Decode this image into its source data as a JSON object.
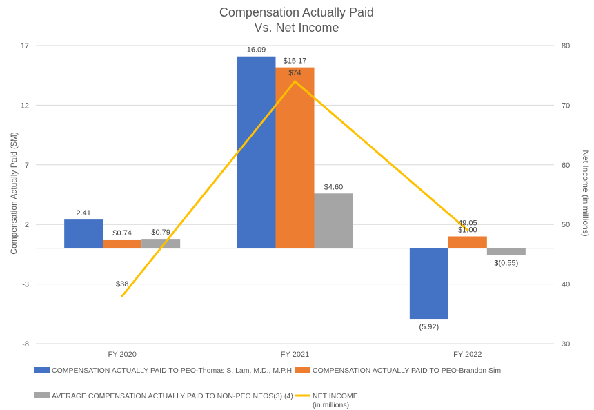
{
  "chart_data": {
    "type": "bar",
    "title": [
      "Compensation Actually Paid",
      "Vs. Net Income"
    ],
    "categories": [
      "FY 2020",
      "FY 2021",
      "FY 2022"
    ],
    "ylabel": "Compensation Actually Paid ($M)",
    "y2label": "Net Income (in millions)",
    "ylim": [
      -8,
      17
    ],
    "yticks": [
      -8,
      -3,
      2,
      7,
      12,
      17
    ],
    "y2lim": [
      30,
      80
    ],
    "y2ticks": [
      30,
      40,
      50,
      60,
      70,
      80
    ],
    "grid": true,
    "series": [
      {
        "name": "COMPENSATION ACTUALLY PAID TO PEO-Thomas S. Lam, M.D., M.P.H",
        "type": "bar",
        "color": "#4472C4",
        "values": [
          2.41,
          16.09,
          -5.92
        ],
        "labels": [
          "2.41",
          "16.09",
          "(5.92)"
        ]
      },
      {
        "name": "COMPENSATION ACTUALLY PAID TO PEO-Brandon Sim",
        "type": "bar",
        "color": "#ED7D31",
        "values": [
          0.74,
          15.17,
          1.0
        ],
        "labels": [
          "$0.74",
          "$15.17",
          "$1.00"
        ]
      },
      {
        "name": "AVERAGE COMPENSATION ACTUALLY PAID TO NON-PEO NEOS(3) (4)",
        "type": "bar",
        "color": "#A5A5A5",
        "values": [
          0.79,
          4.6,
          -0.55
        ],
        "labels": [
          "$0.79",
          "$4.60",
          "$(0.55)"
        ]
      },
      {
        "name": "NET INCOME\n(in millions)",
        "name_lines": [
          "NET INCOME",
          "(in millions)"
        ],
        "type": "line",
        "axis": "secondary",
        "color": "#FFC000",
        "values": [
          38,
          74,
          49.05
        ],
        "labels": [
          "$38",
          "$74",
          "49.05"
        ]
      }
    ]
  }
}
